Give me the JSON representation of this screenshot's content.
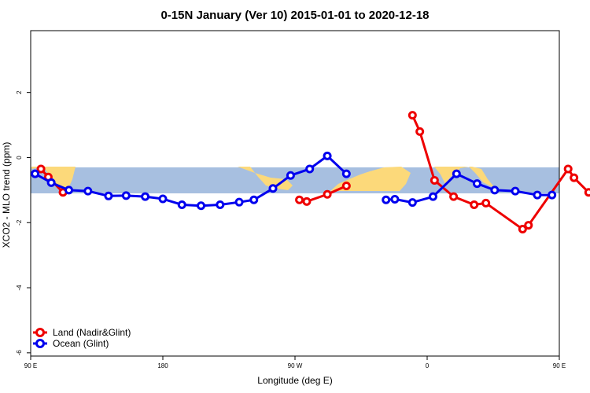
{
  "chart_data": {
    "type": "line",
    "title": "0-15N January (Ver 10)   2015-01-01 to 2020-12-18",
    "xlabel": "Longitude (deg E)",
    "ylabel": "XCO2 - MLO trend (ppm)",
    "xlim": [
      90,
      450
    ],
    "ylim": [
      -6.1,
      3.9
    ],
    "x_ticks": [
      {
        "value": 90,
        "label": "90 E"
      },
      {
        "value": 180,
        "label": "180"
      },
      {
        "value": 270,
        "label": "90 W"
      },
      {
        "value": 360,
        "label": "0"
      },
      {
        "value": 450,
        "label": "90 E"
      },
      {
        "value": 540,
        "label": "180"
      }
    ],
    "y_ticks": [
      {
        "value": 2,
        "label": "2"
      },
      {
        "value": 0,
        "label": "0"
      },
      {
        "value": -2,
        "label": "-2"
      },
      {
        "value": -4,
        "label": "-4"
      },
      {
        "value": -6,
        "label": "-6"
      }
    ],
    "band": {
      "y_min": -1.1,
      "y_max": -0.3,
      "color": "#a7bfe0",
      "land_color": "#fcd97a"
    },
    "grid": false,
    "legend_position": "bottom-left",
    "series": [
      {
        "name": "Land (Nadir&Glint)",
        "color": "#ee0000",
        "segments": [
          [
            [
              97,
              -0.35
            ],
            [
              102,
              -0.6
            ],
            [
              112,
              -1.07
            ]
          ],
          [
            [
              273,
              -1.3
            ],
            [
              278,
              -1.35
            ],
            [
              292,
              -1.13
            ],
            [
              305,
              -0.87
            ]
          ],
          [
            [
              350,
              1.3
            ],
            [
              355,
              0.8
            ],
            [
              365,
              -0.7
            ],
            [
              378,
              -1.2
            ],
            [
              392,
              -1.45
            ],
            [
              400,
              -1.4
            ],
            [
              425,
              -2.2
            ],
            [
              429,
              -2.08
            ],
            [
              456,
              -0.35
            ],
            [
              460,
              -0.62
            ],
            [
              470,
              -1.07
            ]
          ]
        ]
      },
      {
        "name": "Ocean (Glint)",
        "color": "#0000ee",
        "segments": [
          [
            [
              93,
              -0.5
            ],
            [
              104,
              -0.77
            ],
            [
              116,
              -1.0
            ],
            [
              129,
              -1.03
            ],
            [
              143,
              -1.18
            ],
            [
              155,
              -1.17
            ],
            [
              168,
              -1.2
            ],
            [
              180,
              -1.27
            ],
            [
              193,
              -1.45
            ],
            [
              206,
              -1.48
            ],
            [
              219,
              -1.45
            ],
            [
              232,
              -1.37
            ],
            [
              242,
              -1.3
            ],
            [
              255,
              -0.95
            ],
            [
              267,
              -0.55
            ],
            [
              280,
              -0.35
            ],
            [
              292,
              0.05
            ],
            [
              305,
              -0.5
            ]
          ],
          [
            [
              332,
              -1.3
            ],
            [
              338,
              -1.28
            ],
            [
              350,
              -1.38
            ],
            [
              364,
              -1.2
            ],
            [
              380,
              -0.5
            ],
            [
              394,
              -0.8
            ],
            [
              406,
              -1.0
            ],
            [
              420,
              -1.03
            ],
            [
              435,
              -1.15
            ],
            [
              445,
              -1.15
            ]
          ]
        ]
      }
    ]
  }
}
